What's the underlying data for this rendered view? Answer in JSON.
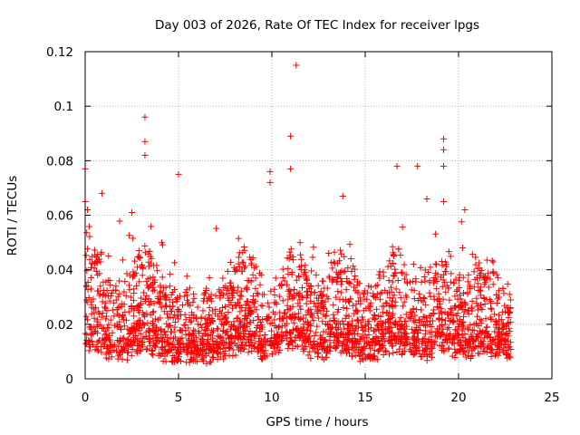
{
  "chart_data": {
    "type": "scatter",
    "title": "Day 003 of 2026, Rate Of TEC Index for receiver lpgs",
    "xlabel": "GPS time / hours",
    "ylabel": "ROTI / TECUs",
    "xlim": [
      0,
      25
    ],
    "ylim": [
      0,
      0.12
    ],
    "x_ticks": [
      0,
      5,
      10,
      15,
      20,
      25
    ],
    "x_tick_labels": [
      "0",
      "5",
      "10",
      "15",
      "20",
      "25"
    ],
    "y_ticks": [
      0,
      0.02,
      0.04,
      0.06,
      0.08,
      0.1,
      0.12
    ],
    "y_tick_labels": [
      "0",
      "0.02",
      "0.04",
      "0.06",
      "0.08",
      "0.1",
      "0.12"
    ],
    "grid": true,
    "marker": "plus",
    "color": "#ff0000",
    "data_x_range": [
      0,
      22.8
    ],
    "baseline_level": 0.015,
    "series": [
      {
        "name": "ROTI",
        "notable_points": [
          {
            "x": 0.0,
            "y": 0.077
          },
          {
            "x": 0.0,
            "y": 0.065
          },
          {
            "x": 0.9,
            "y": 0.068
          },
          {
            "x": 2.5,
            "y": 0.061
          },
          {
            "x": 3.2,
            "y": 0.096
          },
          {
            "x": 3.2,
            "y": 0.087
          },
          {
            "x": 3.2,
            "y": 0.082
          },
          {
            "x": 5.0,
            "y": 0.075
          },
          {
            "x": 9.9,
            "y": 0.076
          },
          {
            "x": 9.9,
            "y": 0.072
          },
          {
            "x": 11.0,
            "y": 0.089
          },
          {
            "x": 11.0,
            "y": 0.077
          },
          {
            "x": 11.3,
            "y": 0.115
          },
          {
            "x": 13.8,
            "y": 0.067
          },
          {
            "x": 16.7,
            "y": 0.078
          },
          {
            "x": 17.8,
            "y": 0.078
          },
          {
            "x": 18.3,
            "y": 0.066
          },
          {
            "x": 19.2,
            "y": 0.088
          },
          {
            "x": 19.2,
            "y": 0.084
          },
          {
            "x": 19.2,
            "y": 0.078
          },
          {
            "x": 19.2,
            "y": 0.065
          }
        ]
      }
    ]
  }
}
